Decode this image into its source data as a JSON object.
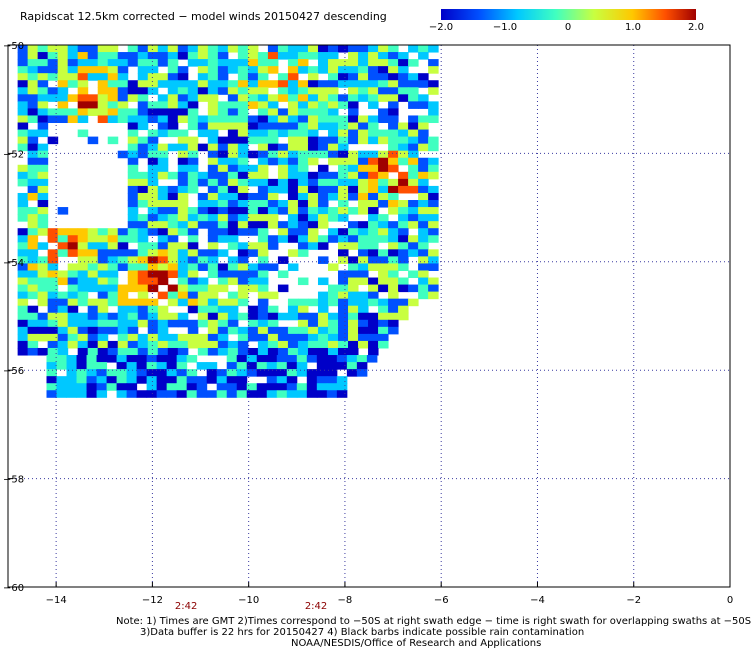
{
  "title": "Rapidscat 12.5km corrected − model winds 20150427 descending",
  "colorbar": {
    "labels": [
      "−2.0",
      "−1.0",
      "0",
      "1.0",
      "2.0"
    ],
    "values": [
      -2.0,
      -1.0,
      0,
      1.0,
      2.0
    ]
  },
  "chart_data": {
    "type": "heatmap",
    "title": "Rapidscat 12.5km corrected − model winds 20150427 descending",
    "xlabel": "",
    "ylabel": "",
    "xlim": [
      -15,
      0
    ],
    "ylim": [
      -60,
      -50
    ],
    "x_ticks": [
      -14,
      -12,
      -10,
      -8,
      -6,
      -4,
      -2,
      0
    ],
    "x_tick_labels": [
      "−14",
      "−12",
      "−10",
      "−8",
      "−6",
      "−4",
      "−2",
      "0"
    ],
    "y_ticks": [
      -60,
      -58,
      -56,
      -54,
      -52,
      -50
    ],
    "y_tick_labels": [
      "−60",
      "−58",
      "−56",
      "−54",
      "−52",
      "−50"
    ],
    "grid": "dotted",
    "color_range": [
      -2.0,
      2.0
    ],
    "colormap": [
      "#0000c8",
      "#0050ff",
      "#00c8ff",
      "#40ffc0",
      "#c8ff40",
      "#ffc800",
      "#ff5000",
      "#a00000"
    ],
    "swath_times": [
      {
        "x": -11.3,
        "label": "2:42"
      },
      {
        "x": -8.6,
        "label": "2:42"
      }
    ],
    "swath_extent": {
      "lon": [
        -14.8,
        -6.2
      ],
      "lat": [
        -56.5,
        -50.0
      ]
    },
    "hotspots": [
      {
        "lon": -13.4,
        "lat": -50.9,
        "value": 1.4
      },
      {
        "lon": -12.0,
        "lat": -54.3,
        "value": 1.6
      },
      {
        "lon": -14.0,
        "lat": -53.6,
        "value": 1.2
      },
      {
        "lon": -7.1,
        "lat": -52.3,
        "value": 1.3
      },
      {
        "lon": -9.5,
        "lat": -50.5,
        "value": 1.0
      }
    ]
  },
  "notes": {
    "line1": "Note: 1) Times are GMT 2)Times correspond to −50S at right swath edge − time is right swath for overlapping swaths at −50S",
    "line2": "3)Data buffer is 22 hrs for 20150427 4) Black barbs indicate possible rain contamination",
    "line3": "NOAA/NESDIS/Office of Research and Applications"
  }
}
